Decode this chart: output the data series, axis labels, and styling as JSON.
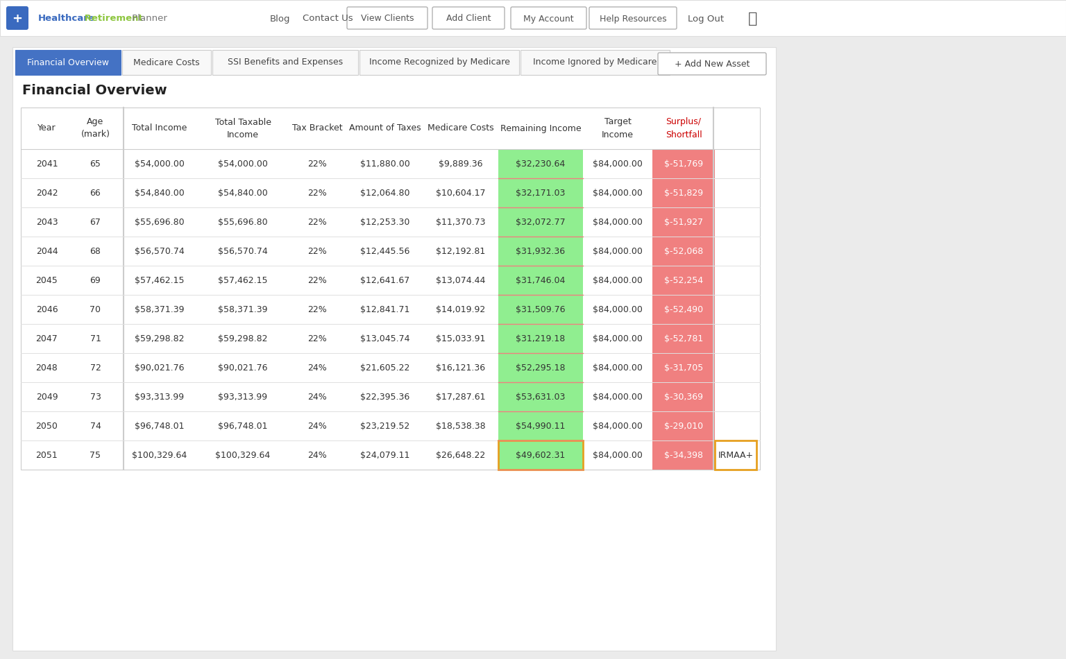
{
  "title": "Financial Overview",
  "tabs": [
    "Financial Overview",
    "Medicare Costs",
    "SSI Benefits and Expenses",
    "Income Recognized by Medicare",
    "Income Ignored by Medicare"
  ],
  "add_button": "+ Add New Asset",
  "header_labels": [
    "Year",
    "Age\n(mark)",
    "Total Income",
    "Total Taxable\nIncome",
    "Tax Bracket",
    "Amount of Taxes",
    "Medicare Costs",
    "Remaining Income",
    "Target\nIncome",
    "Surplus/\nShortfall",
    ""
  ],
  "rows": [
    {
      "year": "2041",
      "age": "65",
      "total_income": "$54,000.00",
      "total_taxable": "$54,000.00",
      "tax_bracket": "22%",
      "amount_taxes": "$11,880.00",
      "medicare_costs": "$9,889.36",
      "remaining": "$32,230.64",
      "target": "$84,000.00",
      "surplus": "$-51,769",
      "note": ""
    },
    {
      "year": "2042",
      "age": "66",
      "total_income": "$54,840.00",
      "total_taxable": "$54,840.00",
      "tax_bracket": "22%",
      "amount_taxes": "$12,064.80",
      "medicare_costs": "$10,604.17",
      "remaining": "$32,171.03",
      "target": "$84,000.00",
      "surplus": "$-51,829",
      "note": ""
    },
    {
      "year": "2043",
      "age": "67",
      "total_income": "$55,696.80",
      "total_taxable": "$55,696.80",
      "tax_bracket": "22%",
      "amount_taxes": "$12,253.30",
      "medicare_costs": "$11,370.73",
      "remaining": "$32,072.77",
      "target": "$84,000.00",
      "surplus": "$-51,927",
      "note": ""
    },
    {
      "year": "2044",
      "age": "68",
      "total_income": "$56,570.74",
      "total_taxable": "$56,570.74",
      "tax_bracket": "22%",
      "amount_taxes": "$12,445.56",
      "medicare_costs": "$12,192.81",
      "remaining": "$31,932.36",
      "target": "$84,000.00",
      "surplus": "$-52,068",
      "note": ""
    },
    {
      "year": "2045",
      "age": "69",
      "total_income": "$57,462.15",
      "total_taxable": "$57,462.15",
      "tax_bracket": "22%",
      "amount_taxes": "$12,641.67",
      "medicare_costs": "$13,074.44",
      "remaining": "$31,746.04",
      "target": "$84,000.00",
      "surplus": "$-52,254",
      "note": ""
    },
    {
      "year": "2046",
      "age": "70",
      "total_income": "$58,371.39",
      "total_taxable": "$58,371.39",
      "tax_bracket": "22%",
      "amount_taxes": "$12,841.71",
      "medicare_costs": "$14,019.92",
      "remaining": "$31,509.76",
      "target": "$84,000.00",
      "surplus": "$-52,490",
      "note": ""
    },
    {
      "year": "2047",
      "age": "71",
      "total_income": "$59,298.82",
      "total_taxable": "$59,298.82",
      "tax_bracket": "22%",
      "amount_taxes": "$13,045.74",
      "medicare_costs": "$15,033.91",
      "remaining": "$31,219.18",
      "target": "$84,000.00",
      "surplus": "$-52,781",
      "note": ""
    },
    {
      "year": "2048",
      "age": "72",
      "total_income": "$90,021.76",
      "total_taxable": "$90,021.76",
      "tax_bracket": "24%",
      "amount_taxes": "$21,605.22",
      "medicare_costs": "$16,121.36",
      "remaining": "$52,295.18",
      "target": "$84,000.00",
      "surplus": "$-31,705",
      "note": ""
    },
    {
      "year": "2049",
      "age": "73",
      "total_income": "$93,313.99",
      "total_taxable": "$93,313.99",
      "tax_bracket": "24%",
      "amount_taxes": "$22,395.36",
      "medicare_costs": "$17,287.61",
      "remaining": "$53,631.03",
      "target": "$84,000.00",
      "surplus": "$-30,369",
      "note": ""
    },
    {
      "year": "2050",
      "age": "74",
      "total_income": "$96,748.01",
      "total_taxable": "$96,748.01",
      "tax_bracket": "24%",
      "amount_taxes": "$23,219.52",
      "medicare_costs": "$18,538.38",
      "remaining": "$54,990.11",
      "target": "$84,000.00",
      "surplus": "$-29,010",
      "note": ""
    },
    {
      "year": "2051",
      "age": "75",
      "total_income": "$100,329.64",
      "total_taxable": "$100,329.64",
      "tax_bracket": "24%",
      "amount_taxes": "$24,079.11",
      "medicare_costs": "$26,648.22",
      "remaining": "$49,602.31",
      "target": "$84,000.00",
      "surplus": "$-34,398",
      "note": "IRMAA+"
    }
  ],
  "bg_color": "#ebebeb",
  "nav_bg": "#ffffff",
  "nav_border": "#dddddd",
  "nav_text_color": "#555555",
  "tab_active_bg": "#4472c4",
  "tab_active_fg": "#ffffff",
  "tab_inactive_bg": "#f8f8f8",
  "tab_inactive_fg": "#444444",
  "tab_border": "#cccccc",
  "content_bg": "#ffffff",
  "content_border": "#dddddd",
  "table_border": "#cccccc",
  "row_divider": "#e0e0e0",
  "header_text": "#333333",
  "surplus_header_color": "#cc0000",
  "cell_text": "#333333",
  "remaining_green_bg": "#90ee90",
  "remaining_pink_border": "#f08080",
  "surplus_red_bg": "#f08080",
  "surplus_white_text": "#ffffff",
  "note_orange_border": "#e6a020",
  "logo_blue": "#3a6abf",
  "logo_green": "#8dc63f",
  "logo_gray": "#777777",
  "add_btn_border": "#aaaaaa",
  "add_btn_text": "#444444",
  "nav_btn_border": "#aaaaaa"
}
